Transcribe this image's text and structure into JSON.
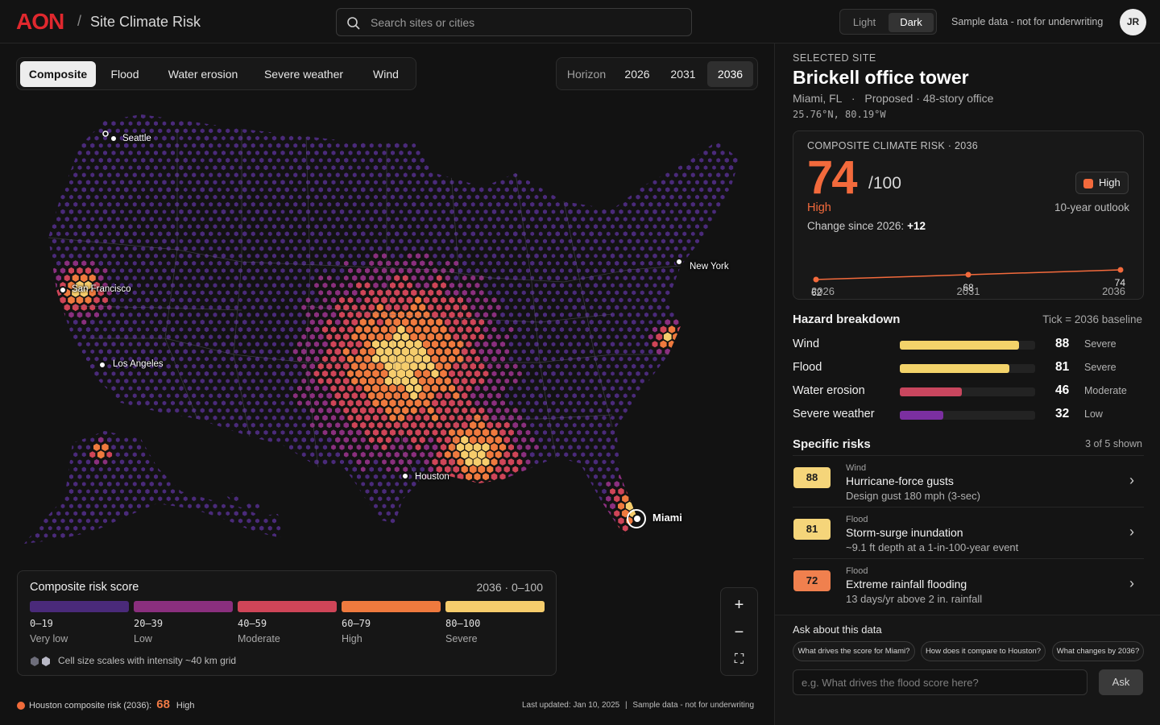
{
  "header": {
    "logo": "AON",
    "separator": "/",
    "app_title": "Site Climate Risk",
    "search_placeholder": "Search sites or cities",
    "theme_light": "Light",
    "theme_dark": "Dark",
    "theme_selected": "Dark",
    "sample_notice": "Sample data - not for underwriting",
    "user_initials": "JR"
  },
  "hazard_tabs": {
    "items": [
      "Composite",
      "Flood",
      "Water erosion",
      "Severe weather",
      "Wind"
    ],
    "active": "Composite"
  },
  "horizon": {
    "label": "Horizon",
    "years": [
      "2026",
      "2031",
      "2036"
    ],
    "active": "2036"
  },
  "map": {
    "cities": {
      "seattle": "Seattle",
      "san_francisco": "San Francisco",
      "los_angeles": "Los Angeles",
      "houston": "Houston",
      "new_york": "New York",
      "miami": "Miami"
    },
    "selected_city": "Miami"
  },
  "legend": {
    "title": "Composite risk score",
    "range": "2036 · 0–100",
    "bins": [
      {
        "range": "0–19",
        "label": "Very low",
        "color": "#4a2a7a"
      },
      {
        "range": "20–39",
        "label": "Low",
        "color": "#8a2f7e"
      },
      {
        "range": "40–59",
        "label": "Moderate",
        "color": "#cf4558"
      },
      {
        "range": "60–79",
        "label": "High",
        "color": "#ef7a3e"
      },
      {
        "range": "80–100",
        "label": "Severe",
        "color": "#f6cd6c"
      }
    ],
    "note": "Cell size scales with intensity ~40 km grid"
  },
  "zoom": {
    "in": "+",
    "out": "−",
    "fullscreen": "⛶"
  },
  "footer": {
    "houston_label": "Houston composite risk (2036):",
    "houston_score": "68",
    "houston_level": "High",
    "last_updated": "Last updated: Jan 10, 2025",
    "divider": "|",
    "sample_notice": "Sample data - not for underwriting"
  },
  "site": {
    "section_label": "SELECTED SITE",
    "name": "Brickell office tower",
    "location": "Miami, FL",
    "dot": "·",
    "details": "Proposed · 48-story office",
    "coordinates": "25.76°N, 80.19°W"
  },
  "composite": {
    "label": "COMPOSITE CLIMATE RISK · 2036",
    "score": "74",
    "out_of": "/100",
    "badge": "High",
    "level": "High",
    "outlook": "10-year outlook",
    "change_label": "Change since 2026:",
    "change_value": "+12",
    "trend": [
      {
        "year": "2026",
        "value": 62
      },
      {
        "year": "2031",
        "value": 68
      },
      {
        "year": "2036",
        "value": 74
      }
    ],
    "accent_color": "#f36a3c"
  },
  "hazard_breakdown": {
    "title": "Hazard breakdown",
    "note": "Tick = 2036 baseline",
    "rows": [
      {
        "name": "Wind",
        "score": 88,
        "level": "Severe",
        "color": "#f3d36a"
      },
      {
        "name": "Flood",
        "score": 81,
        "level": "Severe",
        "color": "#f3d36a"
      },
      {
        "name": "Water erosion",
        "score": 46,
        "level": "Moderate",
        "color": "#c8465e"
      },
      {
        "name": "Severe weather",
        "score": 32,
        "level": "Low",
        "color": "#7b2fa0"
      }
    ]
  },
  "specific_risks": {
    "title": "Specific risks",
    "shown": "3 of 5 shown",
    "items": [
      {
        "score": "88",
        "category": "Wind",
        "name": "Hurricane-force gusts",
        "detail": "Design gust 180 mph (3-sec)",
        "color": "#f5d57a"
      },
      {
        "score": "81",
        "category": "Flood",
        "name": "Storm-surge inundation",
        "detail": "~9.1 ft depth at a 1-in-100-year event",
        "color": "#f5d57a"
      },
      {
        "score": "72",
        "category": "Flood",
        "name": "Extreme rainfall flooding",
        "detail": "13 days/yr above 2 in. rainfall",
        "color": "#f0804e"
      }
    ]
  },
  "ask": {
    "title": "Ask about this data",
    "chips": [
      "What drives the score for Miami?",
      "How does it compare to Houston?",
      "What changes by 2036?"
    ],
    "placeholder": "e.g. What drives the flood score here?",
    "button": "Ask"
  }
}
